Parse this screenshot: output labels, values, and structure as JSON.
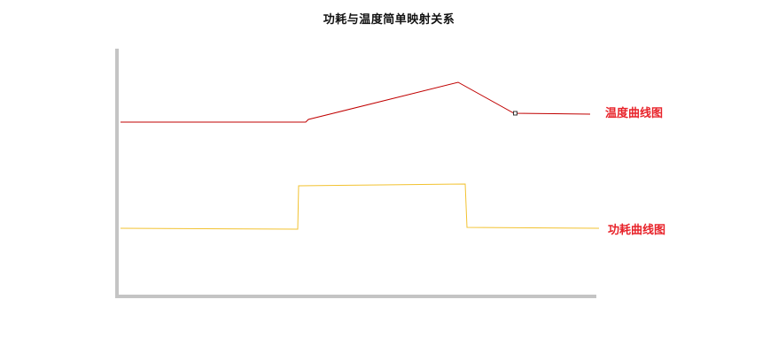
{
  "title": "功耗与温度简单映射关系",
  "curves": {
    "temperature": {
      "label": "温度曲线图",
      "color": "#c00000",
      "label_color": "#e8232a"
    },
    "power": {
      "label": "功耗曲线图",
      "color": "#f2c230",
      "label_color": "#e8232a"
    }
  },
  "axes": {
    "color": "#c4c4c4"
  }
}
